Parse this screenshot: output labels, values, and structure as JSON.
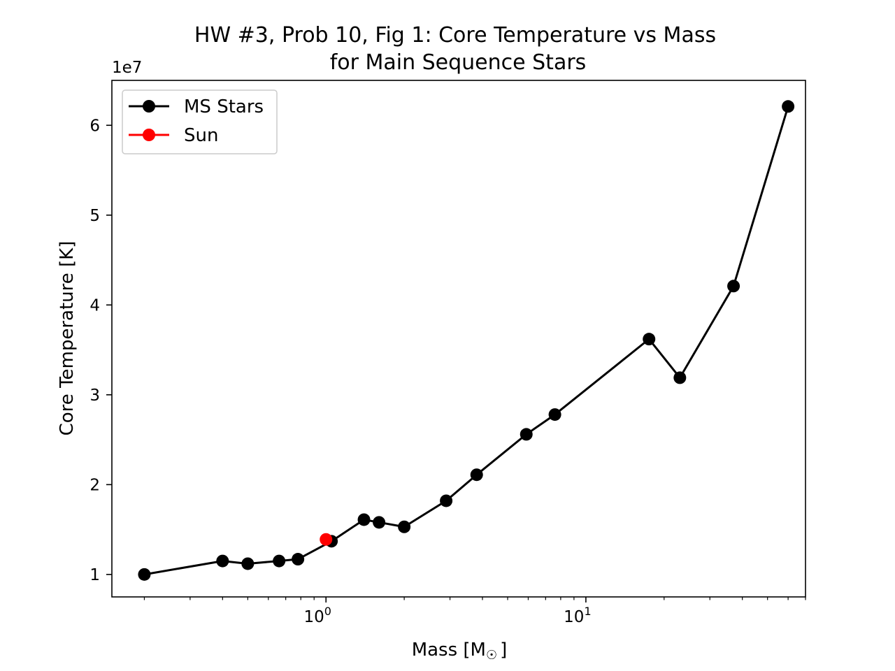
{
  "chart_data": {
    "type": "line",
    "title_line1": "HW #3, Prob 10, Fig 1: Core Temperature vs Mass",
    "title_line2": "for Main Sequence Stars",
    "xlabel": "Mass [M",
    "xlabel_symbol": "☉",
    "xlabel_close": "]",
    "ylabel": "Core Temperature [K]",
    "y_offset_label": "1e7",
    "x_scale": "log",
    "xlim": [
      0.15,
      70
    ],
    "ylim": [
      7500000.0,
      65000000.0
    ],
    "x_ticks": [
      {
        "value": 1,
        "base": "10",
        "exp": "0"
      },
      {
        "value": 10,
        "base": "10",
        "exp": "1"
      }
    ],
    "y_ticks": [
      {
        "value": 10000000.0,
        "label": "1"
      },
      {
        "value": 20000000.0,
        "label": "2"
      },
      {
        "value": 30000000.0,
        "label": "3"
      },
      {
        "value": 40000000.0,
        "label": "4"
      },
      {
        "value": 50000000.0,
        "label": "5"
      },
      {
        "value": 60000000.0,
        "label": "6"
      }
    ],
    "grid": false,
    "legend_position": "top-left",
    "series": [
      {
        "name": "MS Stars",
        "color": "#000000",
        "x": [
          0.2,
          0.4,
          0.5,
          0.66,
          0.78,
          1.05,
          1.4,
          1.6,
          2.0,
          2.9,
          3.8,
          5.9,
          7.6,
          17.5,
          23.0,
          37.0,
          60.0
        ],
        "y": [
          10000000.0,
          11500000.0,
          11200000.0,
          11500000.0,
          11700000.0,
          13700000.0,
          16100000.0,
          15800000.0,
          15300000.0,
          18200000.0,
          21100000.0,
          25600000.0,
          27800000.0,
          36200000.0,
          31900000.0,
          42100000.0,
          62100000.0
        ]
      },
      {
        "name": "Sun",
        "color": "#ff0000",
        "x": [
          1.0
        ],
        "y": [
          13900000.0
        ]
      }
    ]
  }
}
